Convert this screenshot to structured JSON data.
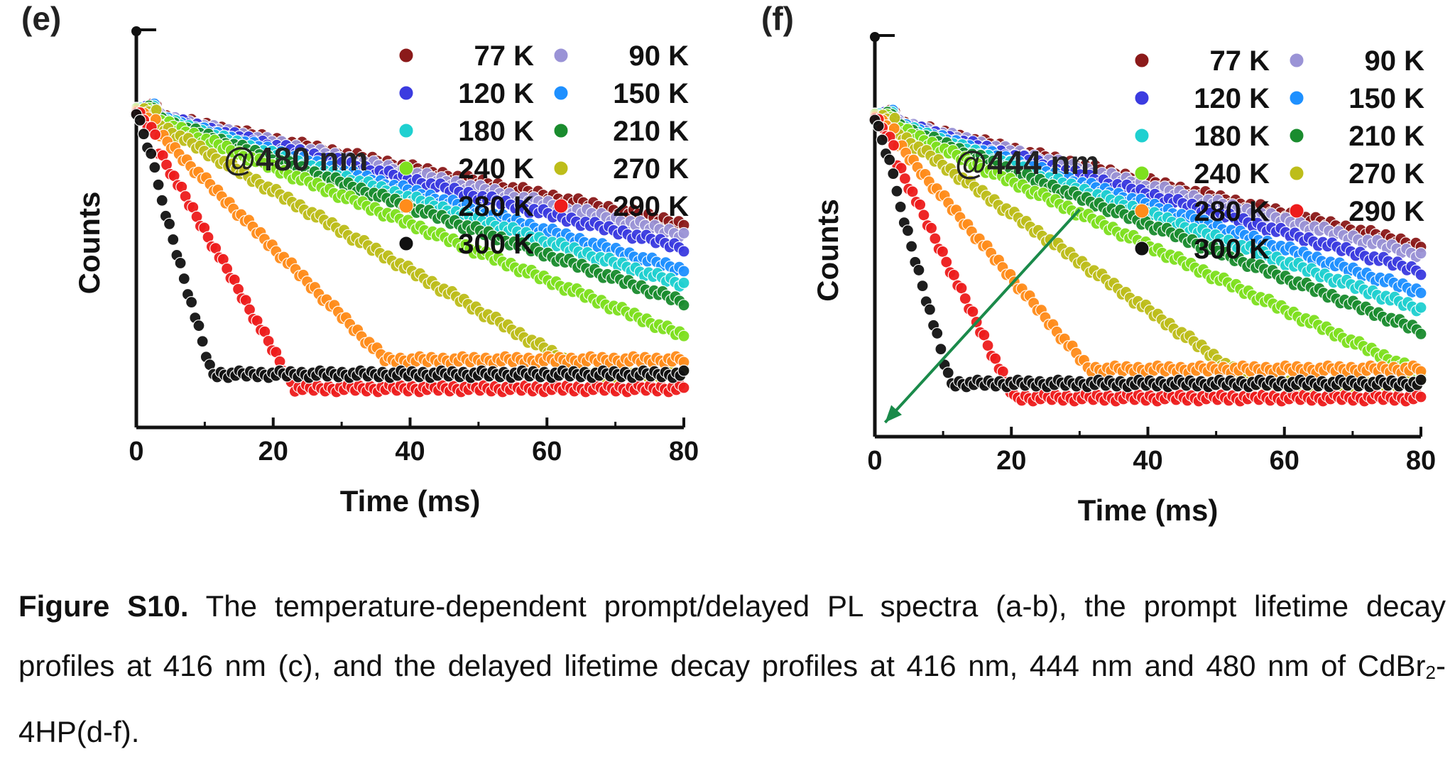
{
  "chart_data": [
    {
      "type": "scatter",
      "panel_label": "(e)",
      "annotation": "@480 nm",
      "xlabel": "Time (ms)",
      "ylabel": "Counts",
      "x_ticks": [
        "0",
        "20",
        "40",
        "60",
        "80"
      ],
      "xlim": [
        0,
        80
      ],
      "y_scale": "log",
      "y_tick_labels": false,
      "legend_placement": "top-right",
      "legend_columns": 2,
      "series": [
        {
          "name": "77 K",
          "color": "#8b1a1a",
          "decay_tau_ms": 34
        },
        {
          "name": "90 K",
          "color": "#9a93d6",
          "decay_tau_ms": 31
        },
        {
          "name": "120 K",
          "color": "#3b3be0",
          "decay_tau_ms": 28
        },
        {
          "name": "150 K",
          "color": "#1e90ff",
          "decay_tau_ms": 24
        },
        {
          "name": "180 K",
          "color": "#1fd0d0",
          "decay_tau_ms": 22
        },
        {
          "name": "210 K",
          "color": "#1a8c2e",
          "decay_tau_ms": 20
        },
        {
          "name": "240 K",
          "color": "#7ee01e",
          "decay_tau_ms": 17
        },
        {
          "name": "270 K",
          "color": "#bdbd1a",
          "decay_tau_ms": 12
        },
        {
          "name": "280 K",
          "color": "#ff8c1a",
          "decay_tau_ms": 7
        },
        {
          "name": "290 K",
          "color": "#ee1c1c",
          "decay_tau_ms": 4
        },
        {
          "name": "300 K",
          "color": "#111111",
          "decay_tau_ms": 2
        }
      ]
    },
    {
      "type": "scatter",
      "panel_label": "(f)",
      "annotation": "@444 nm",
      "xlabel": "Time (ms)",
      "ylabel": "Counts",
      "x_ticks": [
        "0",
        "20",
        "40",
        "60",
        "80"
      ],
      "xlim": [
        0,
        80
      ],
      "y_scale": "log",
      "y_tick_labels": false,
      "legend_placement": "top-right",
      "legend_columns": 2,
      "arrow": {
        "from": [
          30,
          "high"
        ],
        "to": [
          2,
          "low"
        ],
        "color": "#1a8a4a",
        "meaning": "increasing temperature"
      },
      "series": [
        {
          "name": "77 K",
          "color": "#8b1a1a",
          "decay_tau_ms": 30
        },
        {
          "name": "90 K",
          "color": "#9a93d6",
          "decay_tau_ms": 28
        },
        {
          "name": "120 K",
          "color": "#3b3be0",
          "decay_tau_ms": 25
        },
        {
          "name": "150 K",
          "color": "#1e90ff",
          "decay_tau_ms": 22
        },
        {
          "name": "180 K",
          "color": "#1fd0d0",
          "decay_tau_ms": 20
        },
        {
          "name": "210 K",
          "color": "#1a8c2e",
          "decay_tau_ms": 18
        },
        {
          "name": "240 K",
          "color": "#7ee01e",
          "decay_tau_ms": 15
        },
        {
          "name": "270 K",
          "color": "#bdbd1a",
          "decay_tau_ms": 10
        },
        {
          "name": "280 K",
          "color": "#ff8c1a",
          "decay_tau_ms": 6
        },
        {
          "name": "290 K",
          "color": "#ee1c1c",
          "decay_tau_ms": 3.5
        },
        {
          "name": "300 K",
          "color": "#111111",
          "decay_tau_ms": 2
        }
      ]
    }
  ],
  "caption": {
    "label": "Figure S10.",
    "text_before_sub": " The temperature-dependent prompt/delayed PL spectra (a-b), the prompt lifetime decay profiles at 416 nm (c), and the delayed lifetime decay profiles at 416 nm, 444 nm and 480 nm of CdBr",
    "subscript": "2",
    "text_after_sub": "-4HP(d-f)."
  }
}
